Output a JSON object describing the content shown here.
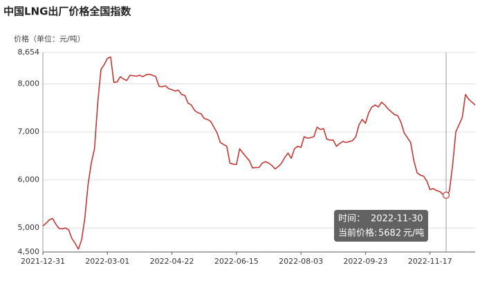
{
  "chart_data": {
    "type": "line",
    "title": "中国LNG出厂价格全国指数",
    "y_label": "价格（单位：元/吨）",
    "categories": [
      "2021-12-31",
      null,
      null,
      null,
      null,
      null,
      null,
      null,
      null,
      null,
      null,
      null,
      null,
      null,
      null,
      null,
      null,
      null,
      null,
      null,
      "2022-03-01",
      null,
      null,
      null,
      null,
      null,
      null,
      null,
      null,
      null,
      null,
      null,
      null,
      null,
      null,
      null,
      null,
      null,
      null,
      null,
      "2022-04-22",
      null,
      null,
      null,
      null,
      null,
      null,
      null,
      null,
      null,
      null,
      null,
      null,
      null,
      null,
      null,
      null,
      null,
      null,
      null,
      "2022-06-15",
      null,
      null,
      null,
      null,
      null,
      null,
      null,
      null,
      null,
      null,
      null,
      null,
      null,
      null,
      null,
      null,
      null,
      null,
      null,
      "2022-08-03",
      null,
      null,
      null,
      null,
      null,
      null,
      null,
      null,
      null,
      null,
      null,
      null,
      null,
      null,
      null,
      null,
      null,
      null,
      null,
      "2022-09-23",
      null,
      null,
      null,
      null,
      null,
      null,
      null,
      null,
      null,
      null,
      null,
      null,
      null,
      null,
      null,
      null,
      null,
      null,
      null,
      "2022-11-17",
      null,
      null,
      null,
      null,
      null,
      null,
      null,
      null,
      null,
      null,
      null,
      null,
      null,
      null
    ],
    "series": [
      {
        "name": "价格",
        "color": "#c23531",
        "values": [
          5040,
          5100,
          5170,
          5200,
          5080,
          4990,
          4980,
          5000,
          4960,
          4780,
          4680,
          4560,
          4750,
          5200,
          5900,
          6350,
          6650,
          7600,
          8300,
          8400,
          8530,
          8560,
          8030,
          8040,
          8150,
          8100,
          8070,
          8180,
          8170,
          8160,
          8180,
          8150,
          8190,
          8200,
          8180,
          8150,
          7950,
          7940,
          7960,
          7900,
          7880,
          7850,
          7870,
          7780,
          7760,
          7600,
          7560,
          7450,
          7400,
          7380,
          7280,
          7260,
          7220,
          7100,
          6980,
          6780,
          6740,
          6700,
          6350,
          6330,
          6320,
          6650,
          6560,
          6480,
          6400,
          6250,
          6260,
          6260,
          6350,
          6380,
          6350,
          6300,
          6230,
          6280,
          6350,
          6470,
          6560,
          6450,
          6650,
          6700,
          6680,
          6900,
          6870,
          6880,
          6900,
          7100,
          7050,
          7070,
          6850,
          6830,
          6830,
          6700,
          6760,
          6800,
          6780,
          6800,
          6820,
          6900,
          7150,
          7260,
          7180,
          7400,
          7520,
          7560,
          7520,
          7620,
          7560,
          7480,
          7420,
          7360,
          7340,
          7200,
          6980,
          6880,
          6780,
          6400,
          6150,
          6100,
          6080,
          5980,
          5800,
          5820,
          5780,
          5760,
          5700,
          5682,
          5760,
          6300,
          7000,
          7150,
          7300,
          7780,
          7680,
          7620,
          7560
        ]
      }
    ],
    "ylim": [
      4500,
      8654
    ],
    "yticks": [
      {
        "value": 4500,
        "label": "4,500"
      },
      {
        "value": 5000,
        "label": "5,000"
      },
      {
        "value": 6000,
        "label": "6,000"
      },
      {
        "value": 7000,
        "label": "7,000"
      },
      {
        "value": 8000,
        "label": "8,000"
      },
      {
        "value": 8654,
        "label": "8,654"
      }
    ],
    "grid": true,
    "tooltip": {
      "index": 125,
      "time_label": "时间：",
      "date": "2022-11-30",
      "price_label": "当前价格:",
      "value": 5682,
      "unit": "元/吨"
    }
  }
}
